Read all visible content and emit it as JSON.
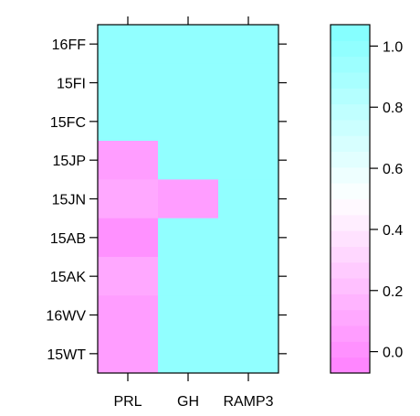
{
  "chart_data": {
    "type": "heatmap",
    "title": "",
    "xlabel": "",
    "ylabel": "",
    "x_categories": [
      "PRL",
      "GH",
      "RAMP3"
    ],
    "y_categories": [
      "16FF",
      "15FI",
      "15FC",
      "15JP",
      "15JN",
      "15AB",
      "15AK",
      "16WV",
      "15WT"
    ],
    "values": [
      [
        1.0,
        1.0,
        1.0
      ],
      [
        1.0,
        1.0,
        1.0
      ],
      [
        1.0,
        1.0,
        1.0
      ],
      [
        0.05,
        1.0,
        1.0
      ],
      [
        0.12,
        0.06,
        1.0
      ],
      [
        0.03,
        1.0,
        1.0
      ],
      [
        0.1,
        1.0,
        1.0
      ],
      [
        0.08,
        1.0,
        1.0
      ],
      [
        0.04,
        1.0,
        1.0
      ]
    ],
    "colorbar": {
      "range": [
        -0.07,
        1.07
      ],
      "ticks": [
        "0.0",
        "0.2",
        "0.4",
        "0.6",
        "0.8",
        "1.0"
      ],
      "low_color": "#ff80ff",
      "mid_color": "#ffffff",
      "high_color": "#80ffff",
      "n_bins": 22
    },
    "grid": false,
    "legend_position": "right"
  }
}
